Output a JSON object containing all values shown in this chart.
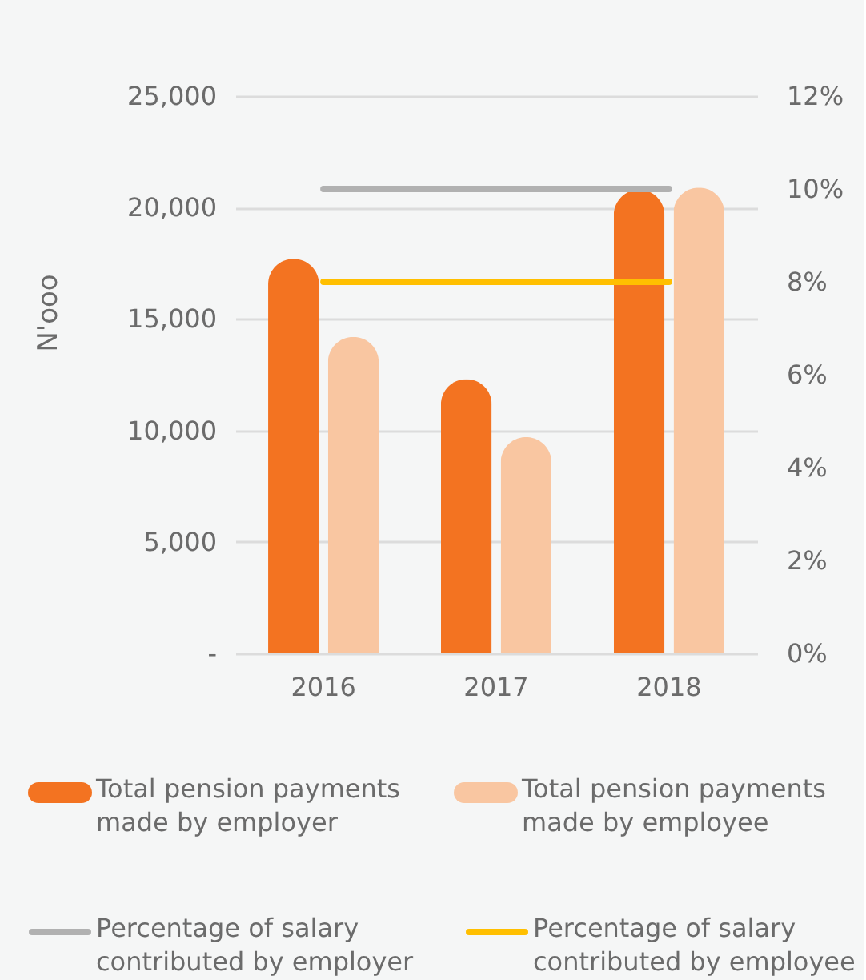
{
  "chart_data": {
    "type": "bar",
    "categories": [
      "2016",
      "2017",
      "2018"
    ],
    "series": [
      {
        "name": "Total pension payments made by employer",
        "color": "#f37321",
        "values": [
          17700,
          12300,
          20800
        ]
      },
      {
        "name": "Total pension payments made by employee",
        "color": "#f9c6a1",
        "values": [
          14200,
          9700,
          20900
        ]
      },
      {
        "name": "Percentage of salary contributed by employer",
        "type": "line",
        "axis": "y2",
        "color": "#b1b1b1",
        "values": [
          10,
          10,
          10
        ]
      },
      {
        "name": "Percentage of salary contributed by employee",
        "type": "line",
        "axis": "y2",
        "color": "#ffbf00",
        "values": [
          8,
          8,
          8
        ]
      }
    ],
    "ylabel": "N'ooo",
    "ylim": [
      0,
      25000
    ],
    "yticks": [
      {
        "value": 0,
        "label": "-"
      },
      {
        "value": 5000,
        "label": "5,000"
      },
      {
        "value": 10000,
        "label": "10,000"
      },
      {
        "value": 15000,
        "label": "15,000"
      },
      {
        "value": 20000,
        "label": "20,000"
      },
      {
        "value": 25000,
        "label": "25,000"
      }
    ],
    "y2lim": [
      0,
      12
    ],
    "y2ticks": [
      {
        "value": 0,
        "label": "0%"
      },
      {
        "value": 2,
        "label": "2%"
      },
      {
        "value": 4,
        "label": "4%"
      },
      {
        "value": 6,
        "label": "6%"
      },
      {
        "value": 8,
        "label": "8%"
      },
      {
        "value": 10,
        "label": "10%"
      },
      {
        "value": 12,
        "label": "12%"
      }
    ],
    "grid": "y",
    "legend": "bottom"
  }
}
